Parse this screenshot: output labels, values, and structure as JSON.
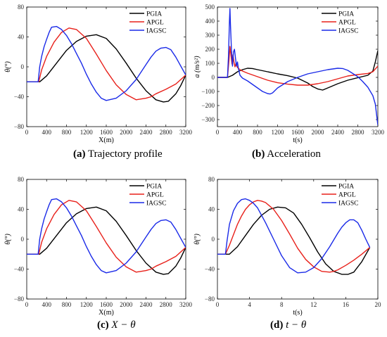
{
  "colors": {
    "PGIA": "#000000",
    "APGL": "#e8201a",
    "IAGSC": "#1a2ae8"
  },
  "chart_data": [
    {
      "id": "a",
      "type": "line",
      "xlabel": "X(m)",
      "ylabel": "θ(°)",
      "xlim": [
        0,
        3200
      ],
      "ylim": [
        -80,
        80
      ],
      "xticks": [
        "0",
        "400",
        "800",
        "1200",
        "1600",
        "2000",
        "2400",
        "2800",
        "3200"
      ],
      "yticks": [
        "80",
        "40",
        "0",
        "−40",
        "−80"
      ],
      "legend": [
        "PGIA",
        "APGL",
        "IAGSC"
      ],
      "legend_position": "top-right",
      "caption_label": "(a)",
      "caption_text": "Trajectory profile",
      "series": [
        {
          "name": "PGIA",
          "x": [
            0,
            260,
            400,
            600,
            800,
            1000,
            1200,
            1400,
            1600,
            1800,
            2000,
            2200,
            2400,
            2600,
            2750,
            2850,
            3000,
            3100,
            3200
          ],
          "y": [
            -20,
            -20,
            -12,
            5,
            22,
            34,
            41,
            43,
            38,
            24,
            5,
            -15,
            -32,
            -44,
            -47,
            -46,
            -36,
            -25,
            -11
          ]
        },
        {
          "name": "APGL",
          "x": [
            0,
            240,
            300,
            400,
            550,
            700,
            850,
            1000,
            1200,
            1400,
            1600,
            1800,
            2000,
            2200,
            2400,
            2500,
            2600,
            2800,
            3000,
            3200
          ],
          "y": [
            -20,
            -20,
            -4,
            14,
            33,
            46,
            52,
            50,
            38,
            17,
            -5,
            -24,
            -37,
            -44,
            -42,
            -40,
            -36,
            -30,
            -23,
            -11
          ]
        },
        {
          "name": "IAGSC",
          "x": [
            0,
            230,
            260,
            300,
            350,
            400,
            450,
            500,
            600,
            700,
            800,
            900,
            1000,
            1100,
            1200,
            1300,
            1400,
            1500,
            1600,
            1800,
            2000,
            2200,
            2400,
            2500,
            2600,
            2700,
            2800,
            2900,
            3000,
            3100,
            3200
          ],
          "y": [
            -20,
            -20,
            0,
            14,
            27,
            37,
            46,
            53,
            54,
            50,
            42,
            31,
            18,
            5,
            -10,
            -23,
            -34,
            -42,
            -45,
            -42,
            -32,
            -17,
            3,
            13,
            21,
            25,
            26,
            23,
            13,
            1,
            -11
          ]
        }
      ]
    },
    {
      "id": "b",
      "type": "line",
      "xlabel": "t(s)",
      "ylabel": "a (m/s²)",
      "xlim": [
        0,
        3200
      ],
      "ylim": [
        -350,
        500
      ],
      "xticks": [
        "0",
        "400",
        "800",
        "1200",
        "1600",
        "2000",
        "2400",
        "2800",
        "3200"
      ],
      "yticks": [
        "500",
        "400",
        "300",
        "200",
        "100",
        "0",
        "−100",
        "−200",
        "−300"
      ],
      "legend": [
        "PGIA",
        "APGL",
        "IAGSC"
      ],
      "legend_position": "top-right",
      "caption_label": "(b)",
      "caption_text": "Acceleration",
      "series": [
        {
          "name": "PGIA",
          "x": [
            0,
            200,
            300,
            400,
            500,
            600,
            700,
            800,
            1000,
            1200,
            1400,
            1600,
            1800,
            1900,
            2000,
            2100,
            2200,
            2400,
            2600,
            2800,
            3000,
            3100,
            3150,
            3200
          ],
          "y": [
            0,
            0,
            15,
            40,
            55,
            65,
            63,
            55,
            40,
            25,
            12,
            -5,
            -40,
            -65,
            -82,
            -90,
            -75,
            -45,
            -20,
            -2,
            15,
            45,
            110,
            190
          ]
        },
        {
          "name": "APGL",
          "x": [
            0,
            200,
            230,
            250,
            270,
            290,
            310,
            330,
            350,
            370,
            400,
            450,
            500,
            600,
            800,
            1000,
            1200,
            1400,
            1600,
            1800,
            2000,
            2200,
            2400,
            2600,
            2800,
            3000,
            3100,
            3200
          ],
          "y": [
            0,
            0,
            120,
            220,
            160,
            95,
            160,
            110,
            75,
            100,
            70,
            55,
            45,
            30,
            5,
            -20,
            -38,
            -48,
            -55,
            -55,
            -45,
            -30,
            -10,
            10,
            20,
            28,
            40,
            80
          ]
        },
        {
          "name": "IAGSC",
          "x": [
            0,
            200,
            220,
            240,
            250,
            260,
            280,
            300,
            320,
            340,
            360,
            380,
            400,
            420,
            450,
            500,
            600,
            700,
            800,
            900,
            1000,
            1050,
            1100,
            1200,
            1400,
            1600,
            1800,
            2000,
            2200,
            2400,
            2500,
            2600,
            2800,
            2900,
            3000,
            3100,
            3150,
            3200
          ],
          "y": [
            0,
            0,
            150,
            400,
            490,
            380,
            200,
            80,
            180,
            200,
            140,
            80,
            110,
            60,
            15,
            -5,
            -25,
            -50,
            -75,
            -100,
            -115,
            -118,
            -110,
            -75,
            -30,
            0,
            25,
            40,
            55,
            65,
            63,
            50,
            5,
            -30,
            -70,
            -130,
            -190,
            -340
          ]
        }
      ]
    },
    {
      "id": "c",
      "type": "line",
      "xlabel": "X(m)",
      "ylabel": "θ(°)",
      "xlim": [
        0,
        3200
      ],
      "ylim": [
        -80,
        80
      ],
      "xticks": [
        "0",
        "400",
        "800",
        "1200",
        "1600",
        "2000",
        "2400",
        "2800",
        "3200"
      ],
      "yticks": [
        "80",
        "40",
        "0",
        "−40",
        "−80"
      ],
      "legend": [
        "PGIA",
        "APGL",
        "IAGSC"
      ],
      "legend_position": "top-right",
      "caption_label": "(c)",
      "caption_text": "X − θ",
      "series": [
        {
          "name": "PGIA",
          "x": [
            0,
            260,
            400,
            600,
            800,
            1000,
            1200,
            1400,
            1600,
            1800,
            2000,
            2200,
            2400,
            2600,
            2750,
            2850,
            3000,
            3100,
            3200
          ],
          "y": [
            -20,
            -20,
            -12,
            5,
            22,
            34,
            41,
            43,
            38,
            24,
            5,
            -15,
            -32,
            -44,
            -47,
            -46,
            -36,
            -25,
            -11
          ]
        },
        {
          "name": "APGL",
          "x": [
            0,
            240,
            300,
            400,
            550,
            700,
            850,
            1000,
            1200,
            1400,
            1600,
            1800,
            2000,
            2200,
            2400,
            2500,
            2600,
            2800,
            3000,
            3200
          ],
          "y": [
            -20,
            -20,
            -4,
            14,
            33,
            46,
            52,
            50,
            38,
            17,
            -5,
            -24,
            -37,
            -44,
            -42,
            -40,
            -36,
            -30,
            -23,
            -11
          ]
        },
        {
          "name": "IAGSC",
          "x": [
            0,
            230,
            260,
            300,
            350,
            400,
            450,
            500,
            600,
            700,
            800,
            900,
            1000,
            1100,
            1200,
            1300,
            1400,
            1500,
            1600,
            1800,
            2000,
            2200,
            2400,
            2500,
            2600,
            2700,
            2800,
            2900,
            3000,
            3100,
            3200
          ],
          "y": [
            -20,
            -20,
            0,
            14,
            27,
            37,
            46,
            53,
            54,
            50,
            42,
            31,
            18,
            5,
            -10,
            -23,
            -34,
            -42,
            -45,
            -42,
            -32,
            -17,
            3,
            13,
            21,
            25,
            26,
            23,
            13,
            1,
            -11
          ]
        }
      ]
    },
    {
      "id": "d",
      "type": "line",
      "xlabel": "t(s)",
      "ylabel": "θ(°)",
      "xlim": [
        0,
        20
      ],
      "ylim": [
        -80,
        80
      ],
      "xticks": [
        "0",
        "4",
        "8",
        "12",
        "16",
        "20"
      ],
      "yticks": [
        "80",
        "40",
        "0",
        "−40",
        "−80"
      ],
      "legend": [
        "PGIA",
        "APGL",
        "IAGSC"
      ],
      "legend_position": "top-right",
      "caption_label": "(d)",
      "caption_text": "t − θ",
      "series": [
        {
          "name": "PGIA",
          "x": [
            0,
            1.5,
            2.5,
            3.5,
            4.5,
            5.5,
            6.5,
            7.5,
            8.5,
            9.5,
            10.5,
            11.5,
            12.5,
            13.5,
            14.5,
            15.5,
            16.3,
            17,
            18,
            19
          ],
          "y": [
            -20,
            -20,
            -10,
            5,
            20,
            32,
            40,
            43,
            42,
            35,
            20,
            2,
            -17,
            -33,
            -43,
            -47,
            -47,
            -44,
            -30,
            -11
          ]
        },
        {
          "name": "APGL",
          "x": [
            0,
            1,
            1.5,
            2,
            2.5,
            3,
            3.5,
            4,
            4.5,
            5,
            5.5,
            6,
            7,
            8,
            9,
            10,
            11,
            12,
            13,
            14,
            14.5,
            15,
            16,
            17,
            18,
            19
          ],
          "y": [
            -20,
            -20,
            -8,
            6,
            20,
            31,
            40,
            46,
            50,
            52,
            51,
            49,
            40,
            25,
            7,
            -12,
            -27,
            -37,
            -43,
            -44,
            -43,
            -41,
            -35,
            -28,
            -20,
            -11
          ]
        },
        {
          "name": "IAGSC",
          "x": [
            0,
            1,
            1.2,
            1.5,
            2,
            2.5,
            3,
            3.5,
            4,
            4.5,
            5,
            6,
            7,
            8,
            9,
            10,
            11,
            12,
            13,
            14,
            15,
            15.5,
            16,
            16.5,
            17,
            17.5,
            18,
            18.5,
            19
          ],
          "y": [
            -20,
            -20,
            -2,
            20,
            38,
            48,
            53,
            54,
            52,
            48,
            42,
            22,
            0,
            -22,
            -38,
            -45,
            -44,
            -38,
            -26,
            -10,
            8,
            16,
            22,
            26,
            26,
            22,
            12,
            0,
            -11
          ]
        }
      ]
    }
  ]
}
